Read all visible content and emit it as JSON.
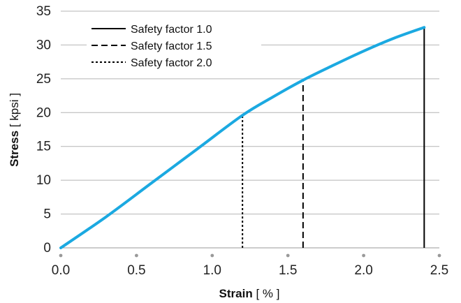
{
  "chart_data": {
    "type": "line",
    "xlabel": "Strain",
    "xlabel_unit": "[ % ]",
    "ylabel": "Stress",
    "ylabel_unit": "[ kpsi ]",
    "xlim": [
      0,
      2.5
    ],
    "ylim": [
      0,
      35
    ],
    "x_ticks": [
      "0.0",
      "0.5",
      "1.0",
      "1.5",
      "2.0",
      "2.5"
    ],
    "y_ticks": [
      "0",
      "5",
      "10",
      "15",
      "20",
      "25",
      "30",
      "35"
    ],
    "grid": "horizontal",
    "legend_position": "top-left",
    "curve": {
      "color": "#1ba9e1",
      "x": [
        0.0,
        0.3,
        0.6,
        0.9,
        1.2,
        1.4,
        1.6,
        1.8,
        2.0,
        2.2,
        2.4
      ],
      "y": [
        0.0,
        4.6,
        9.6,
        14.6,
        19.6,
        22.3,
        24.8,
        27.0,
        29.1,
        31.0,
        32.6
      ]
    },
    "series": [
      {
        "name": "Safety factor 1.0",
        "dash": "solid",
        "x": 2.4,
        "y": 32.6,
        "color": "#000000"
      },
      {
        "name": "Safety factor 1.5",
        "dash": "dashed",
        "x": 1.6,
        "y": 24.8,
        "color": "#000000"
      },
      {
        "name": "Safety factor 2.0",
        "dash": "dotted",
        "x": 1.2,
        "y": 19.6,
        "color": "#000000"
      }
    ]
  }
}
